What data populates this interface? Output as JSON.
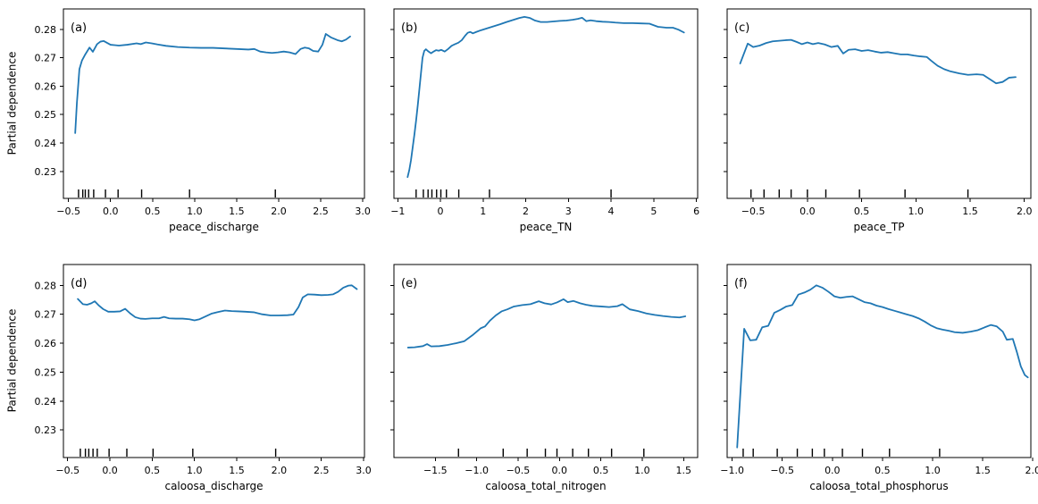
{
  "figure": {
    "ylabel": "Partial dependence",
    "background": "#ffffff",
    "line_color": "#1f77b4",
    "axis_color": "#000000",
    "ylim": [
      0.2205,
      0.2872
    ],
    "yticks": {
      "values": [
        0.23,
        0.24,
        0.25,
        0.26,
        0.27,
        0.28
      ],
      "labels": [
        "0.23",
        "0.24",
        "0.25",
        "0.26",
        "0.27",
        "0.28"
      ]
    }
  },
  "chart_data": [
    {
      "id": "a",
      "type": "line",
      "panel_label": "(a)",
      "xlabel": "peace_discharge",
      "ylabel": "Partial dependence",
      "show_ytick_labels": true,
      "xlim": [
        -0.56,
        3.02
      ],
      "xticks": {
        "values": [
          -0.5,
          0.0,
          0.5,
          1.0,
          1.5,
          2.0,
          2.5,
          3.0
        ],
        "labels": [
          "−0.5",
          "0.0",
          "0.5",
          "1.0",
          "1.5",
          "2.0",
          "2.5",
          "3.0"
        ]
      },
      "rug_x": [
        -0.38,
        -0.33,
        -0.3,
        -0.26,
        -0.2,
        -0.06,
        0.09,
        0.37,
        0.94,
        1.96
      ],
      "series": {
        "x": [
          -0.42,
          -0.4,
          -0.37,
          -0.34,
          -0.3,
          -0.25,
          -0.21,
          -0.16,
          -0.12,
          -0.08,
          0.0,
          0.1,
          0.2,
          0.31,
          0.36,
          0.42,
          0.49,
          0.56,
          0.66,
          0.8,
          0.94,
          1.08,
          1.22,
          1.36,
          1.5,
          1.64,
          1.71,
          1.78,
          1.85,
          1.92,
          1.99,
          2.06,
          2.13,
          2.2,
          2.26,
          2.31,
          2.36,
          2.41,
          2.47,
          2.52,
          2.56,
          2.62,
          2.7,
          2.75,
          2.8,
          2.85
        ],
        "y": [
          0.2435,
          0.254,
          0.266,
          0.269,
          0.2712,
          0.2736,
          0.2721,
          0.2748,
          0.2757,
          0.2759,
          0.2746,
          0.2743,
          0.2746,
          0.2751,
          0.2748,
          0.2754,
          0.2751,
          0.2747,
          0.2742,
          0.2738,
          0.2736,
          0.2735,
          0.2735,
          0.2733,
          0.2731,
          0.2729,
          0.2731,
          0.2722,
          0.2719,
          0.2717,
          0.2719,
          0.2722,
          0.2719,
          0.2713,
          0.2731,
          0.2736,
          0.2733,
          0.2724,
          0.2722,
          0.2746,
          0.2784,
          0.2772,
          0.2762,
          0.2758,
          0.2764,
          0.2775
        ]
      }
    },
    {
      "id": "b",
      "type": "line",
      "panel_label": "(b)",
      "xlabel": "peace_TN",
      "show_ytick_labels": false,
      "xlim": [
        -1.09,
        6.03
      ],
      "xticks": {
        "values": [
          -1,
          0,
          1,
          2,
          3,
          4,
          5,
          6
        ],
        "labels": [
          "−1",
          "0",
          "1",
          "2",
          "3",
          "4",
          "5",
          "6"
        ]
      },
      "rug_x": [
        -0.57,
        -0.4,
        -0.29,
        -0.2,
        -0.09,
        0.01,
        0.14,
        0.43,
        1.15,
        4.0
      ],
      "series": {
        "x": [
          -0.77,
          -0.73,
          -0.69,
          -0.65,
          -0.61,
          -0.57,
          -0.53,
          -0.49,
          -0.45,
          -0.42,
          -0.38,
          -0.34,
          -0.28,
          -0.22,
          -0.16,
          -0.1,
          -0.04,
          0.02,
          0.1,
          0.18,
          0.26,
          0.34,
          0.42,
          0.5,
          0.58,
          0.64,
          0.7,
          0.76,
          0.84,
          0.95,
          1.1,
          1.25,
          1.4,
          1.55,
          1.7,
          1.85,
          1.97,
          2.1,
          2.22,
          2.35,
          2.5,
          2.65,
          2.8,
          2.95,
          3.1,
          3.22,
          3.32,
          3.42,
          3.52,
          3.65,
          3.8,
          3.95,
          4.1,
          4.3,
          4.5,
          4.7,
          4.9,
          5.1,
          5.3,
          5.45,
          5.58,
          5.71
        ],
        "y": [
          0.228,
          0.2305,
          0.234,
          0.2385,
          0.243,
          0.248,
          0.2535,
          0.2595,
          0.2655,
          0.27,
          0.2724,
          0.273,
          0.2722,
          0.2716,
          0.2722,
          0.2727,
          0.2725,
          0.2728,
          0.2722,
          0.2731,
          0.2742,
          0.2748,
          0.2753,
          0.2762,
          0.2778,
          0.2788,
          0.2791,
          0.2786,
          0.2791,
          0.2797,
          0.2804,
          0.2811,
          0.2818,
          0.2826,
          0.2833,
          0.284,
          0.2844,
          0.284,
          0.2831,
          0.2826,
          0.2826,
          0.2828,
          0.283,
          0.2831,
          0.2834,
          0.2837,
          0.2841,
          0.2829,
          0.2832,
          0.2829,
          0.2827,
          0.2826,
          0.2824,
          0.2822,
          0.2822,
          0.2821,
          0.282,
          0.2809,
          0.2806,
          0.2806,
          0.2799,
          0.2789
        ]
      }
    },
    {
      "id": "c",
      "type": "line",
      "panel_label": "(c)",
      "xlabel": "peace_TP",
      "show_ytick_labels": false,
      "xlim": [
        -0.74,
        2.06
      ],
      "xticks": {
        "values": [
          -0.5,
          0.0,
          0.5,
          1.0,
          1.5,
          2.0
        ],
        "labels": [
          "−0.5",
          "0.0",
          "0.5",
          "1.0",
          "1.5",
          "2.0"
        ]
      },
      "rug_x": [
        -0.52,
        -0.4,
        -0.26,
        -0.15,
        0.0,
        0.17,
        0.48,
        0.9,
        1.48
      ],
      "series": {
        "x": [
          -0.62,
          -0.55,
          -0.5,
          -0.44,
          -0.38,
          -0.32,
          -0.26,
          -0.2,
          -0.15,
          -0.1,
          -0.05,
          0.0,
          0.05,
          0.1,
          0.16,
          0.22,
          0.28,
          0.33,
          0.38,
          0.44,
          0.5,
          0.56,
          0.62,
          0.68,
          0.74,
          0.8,
          0.86,
          0.92,
          0.98,
          1.04,
          1.1,
          1.14,
          1.2,
          1.26,
          1.32,
          1.4,
          1.48,
          1.56,
          1.62,
          1.68,
          1.74,
          1.8,
          1.86,
          1.92
        ],
        "y": [
          0.268,
          0.275,
          0.2738,
          0.2743,
          0.2752,
          0.2758,
          0.276,
          0.2762,
          0.2763,
          0.2756,
          0.2748,
          0.2754,
          0.2748,
          0.2752,
          0.2747,
          0.2738,
          0.2742,
          0.2715,
          0.2728,
          0.273,
          0.2724,
          0.2727,
          0.2722,
          0.2718,
          0.272,
          0.2716,
          0.2712,
          0.2712,
          0.2708,
          0.2705,
          0.2703,
          0.269,
          0.2672,
          0.266,
          0.2652,
          0.2645,
          0.264,
          0.2642,
          0.264,
          0.2625,
          0.261,
          0.2615,
          0.263,
          0.2632
        ]
      }
    },
    {
      "id": "d",
      "type": "line",
      "panel_label": "(d)",
      "xlabel": "caloosa_discharge",
      "ylabel": "Partial dependence",
      "show_ytick_labels": true,
      "xlim": [
        -0.55,
        3.01
      ],
      "xticks": {
        "values": [
          -0.5,
          0.0,
          0.5,
          1.0,
          1.5,
          2.0,
          2.5,
          3.0
        ],
        "labels": [
          "−0.5",
          "0.0",
          "0.5",
          "1.0",
          "1.5",
          "2.0",
          "2.5",
          "3.0"
        ]
      },
      "rug_x": [
        -0.35,
        -0.29,
        -0.25,
        -0.2,
        -0.15,
        -0.01,
        0.2,
        0.51,
        0.98,
        1.96
      ],
      "series": {
        "x": [
          -0.38,
          -0.32,
          -0.27,
          -0.22,
          -0.18,
          -0.13,
          -0.08,
          -0.02,
          0.05,
          0.12,
          0.18,
          0.24,
          0.3,
          0.36,
          0.42,
          0.5,
          0.58,
          0.64,
          0.7,
          0.78,
          0.86,
          0.94,
          1.0,
          1.06,
          1.14,
          1.2,
          1.28,
          1.36,
          1.44,
          1.52,
          1.6,
          1.7,
          1.8,
          1.9,
          2.0,
          2.1,
          2.17,
          2.23,
          2.28,
          2.34,
          2.42,
          2.5,
          2.58,
          2.64,
          2.7,
          2.76,
          2.82,
          2.86,
          2.92
        ],
        "y": [
          0.2753,
          0.2735,
          0.2733,
          0.2738,
          0.2745,
          0.273,
          0.2718,
          0.2709,
          0.2709,
          0.271,
          0.2719,
          0.2703,
          0.269,
          0.2685,
          0.2684,
          0.2686,
          0.2686,
          0.2691,
          0.2686,
          0.2685,
          0.2685,
          0.2683,
          0.2679,
          0.2683,
          0.2694,
          0.2702,
          0.2708,
          0.2713,
          0.2711,
          0.271,
          0.2709,
          0.2707,
          0.27,
          0.2696,
          0.2696,
          0.2697,
          0.2699,
          0.2725,
          0.2758,
          0.2769,
          0.2768,
          0.2766,
          0.2767,
          0.2769,
          0.2778,
          0.2792,
          0.2799,
          0.28,
          0.2787
        ]
      }
    },
    {
      "id": "e",
      "type": "line",
      "panel_label": "(e)",
      "xlabel": "caloosa_total_nitrogen",
      "show_ytick_labels": false,
      "xlim": [
        -2.0,
        1.67
      ],
      "xticks": {
        "values": [
          -1.5,
          -1.0,
          -0.5,
          0.0,
          0.5,
          1.0,
          1.5
        ],
        "labels": [
          "−1.5",
          "−1.0",
          "−0.5",
          "0.0",
          "0.5",
          "1.0",
          "1.5"
        ]
      },
      "rug_x": [
        -1.22,
        -0.68,
        -0.39,
        -0.17,
        -0.03,
        0.16,
        0.35,
        0.63,
        1.02
      ],
      "series": {
        "x": [
          -1.83,
          -1.75,
          -1.65,
          -1.6,
          -1.55,
          -1.45,
          -1.35,
          -1.25,
          -1.15,
          -1.05,
          -0.95,
          -0.9,
          -0.84,
          -0.77,
          -0.7,
          -0.63,
          -0.55,
          -0.45,
          -0.35,
          -0.25,
          -0.18,
          -0.1,
          -0.03,
          0.05,
          0.1,
          0.17,
          0.25,
          0.32,
          0.4,
          0.5,
          0.6,
          0.7,
          0.76,
          0.85,
          0.95,
          1.05,
          1.15,
          1.25,
          1.35,
          1.45,
          1.52
        ],
        "y": [
          0.2585,
          0.2586,
          0.259,
          0.2597,
          0.2589,
          0.259,
          0.2594,
          0.26,
          0.2607,
          0.2628,
          0.2652,
          0.2658,
          0.2678,
          0.2696,
          0.271,
          0.2717,
          0.2727,
          0.2732,
          0.2735,
          0.2745,
          0.2738,
          0.2734,
          0.2741,
          0.2752,
          0.2742,
          0.2746,
          0.2738,
          0.2733,
          0.2729,
          0.2727,
          0.2725,
          0.2728,
          0.2735,
          0.2717,
          0.2711,
          0.2703,
          0.2698,
          0.2694,
          0.2691,
          0.2689,
          0.2693
        ]
      }
    },
    {
      "id": "f",
      "type": "line",
      "panel_label": "(f)",
      "xlabel": "caloosa_total_phosphorus",
      "show_ytick_labels": false,
      "xlim": [
        -1.05,
        1.98
      ],
      "xticks": {
        "values": [
          -1.0,
          -0.5,
          0.0,
          0.5,
          1.0,
          1.5,
          2.0
        ],
        "labels": [
          "−1.0",
          "−0.5",
          "0.0",
          "0.5",
          "1.0",
          "1.5",
          "2.0"
        ]
      },
      "rug_x": [
        -0.89,
        -0.79,
        -0.55,
        -0.35,
        -0.2,
        -0.08,
        0.1,
        0.3,
        0.57,
        1.07
      ],
      "series": {
        "x": [
          -0.95,
          -0.88,
          -0.82,
          -0.76,
          -0.7,
          -0.64,
          -0.58,
          -0.52,
          -0.46,
          -0.4,
          -0.34,
          -0.28,
          -0.22,
          -0.16,
          -0.1,
          -0.04,
          0.02,
          0.08,
          0.14,
          0.2,
          0.26,
          0.32,
          0.38,
          0.44,
          0.5,
          0.56,
          0.62,
          0.68,
          0.74,
          0.8,
          0.86,
          0.92,
          0.98,
          1.04,
          1.1,
          1.16,
          1.22,
          1.3,
          1.38,
          1.45,
          1.52,
          1.58,
          1.64,
          1.7,
          1.74,
          1.8,
          1.84,
          1.88,
          1.92,
          1.95
        ],
        "y": [
          0.224,
          0.265,
          0.261,
          0.2612,
          0.2655,
          0.266,
          0.2705,
          0.2715,
          0.2727,
          0.2732,
          0.2768,
          0.2775,
          0.2785,
          0.28,
          0.2792,
          0.2778,
          0.2762,
          0.2757,
          0.276,
          0.2762,
          0.2752,
          0.2742,
          0.2738,
          0.273,
          0.2725,
          0.2718,
          0.2712,
          0.2706,
          0.27,
          0.2694,
          0.2686,
          0.2675,
          0.2662,
          0.2652,
          0.2647,
          0.2643,
          0.2638,
          0.2636,
          0.264,
          0.2645,
          0.2655,
          0.2663,
          0.2658,
          0.264,
          0.2612,
          0.2615,
          0.257,
          0.252,
          0.249,
          0.2482
        ]
      }
    }
  ]
}
